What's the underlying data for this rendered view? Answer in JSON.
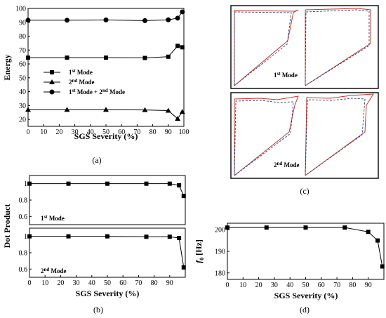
{
  "panels": {
    "a": {
      "caption": "(a)",
      "chart_data": {
        "type": "line",
        "xlabel": "SGS Severity (%)",
        "ylabel": "Energy",
        "xlim": [
          0,
          100
        ],
        "ylim": [
          15,
          100
        ],
        "x_ticks": [
          "0",
          "10",
          "20",
          "30",
          "40",
          "50",
          "60",
          "70",
          "80",
          "90",
          "100"
        ],
        "y_ticks": [
          "20",
          "30",
          "40",
          "50",
          "60",
          "70",
          "80",
          "90",
          "100"
        ],
        "legend_position": "center-left",
        "series": [
          {
            "name": "1st Mode",
            "legend_sup": "st",
            "legend_base": "1",
            "legend_rest": " Mode",
            "marker": "square",
            "x": [
              0,
              25,
              50,
              75,
              90,
              96,
              99
            ],
            "y": [
              64.5,
              64.5,
              64.5,
              64.3,
              65.2,
              73,
              72
            ]
          },
          {
            "name": "2nd Mode",
            "legend_sup": "nd",
            "legend_base": "2",
            "legend_rest": " Mode",
            "marker": "triangle",
            "x": [
              0,
              25,
              50,
              75,
              90,
              96,
              99
            ],
            "y": [
              27,
              27,
              27,
              26.8,
              26.4,
              20.5,
              25.5
            ]
          },
          {
            "name": "1st Mode + 2nd Mode",
            "marker": "circle",
            "x": [
              0,
              25,
              50,
              75,
              90,
              96,
              99
            ],
            "y": [
              91.5,
              91.5,
              91.7,
              91.2,
              91.8,
              93,
              97.5
            ]
          }
        ],
        "legend_circle_parts": [
          "1",
          "st",
          " Mode + 2",
          "nd",
          " Mode"
        ]
      }
    },
    "b": {
      "caption": "(b)",
      "chart_data": [
        {
          "type": "line",
          "annotation_base": "1",
          "annotation_sup": "st",
          "annotation_rest": " Mode",
          "xlim": [
            0,
            100
          ],
          "ylim": [
            0.5,
            1.1
          ],
          "y_ticks": [
            "0.6",
            "0.8",
            "1"
          ],
          "series": [
            {
              "x": [
                0,
                25,
                50,
                75,
                90,
                96,
                99
              ],
              "y": [
                1,
                1,
                1,
                1,
                1,
                0.98,
                0.85
              ]
            }
          ]
        },
        {
          "type": "line",
          "annotation_base": "2",
          "annotation_sup": "nd",
          "annotation_rest": " Mode",
          "xlim": [
            0,
            100
          ],
          "ylim": [
            0.5,
            1.1
          ],
          "y_ticks": [
            "0.6",
            "0.8",
            "1"
          ],
          "x_ticks": [
            "0",
            "10",
            "20",
            "30",
            "40",
            "50",
            "60",
            "70",
            "80",
            "90"
          ],
          "xlabel": "SGS Severity (%)",
          "series": [
            {
              "x": [
                0,
                25,
                50,
                75,
                90,
                96,
                99
              ],
              "y": [
                1,
                1,
                1,
                0.995,
                0.995,
                0.98,
                0.62
              ]
            }
          ]
        }
      ],
      "ylabel": "Dot Product"
    },
    "c": {
      "caption": "(c)",
      "labels": [
        {
          "base": "1",
          "sup": "st",
          "rest": " Mode"
        },
        {
          "base": "2",
          "sup": "nd",
          "rest": " Mode"
        }
      ],
      "colors": {
        "solid": "#c0392b",
        "dashed": "#2c3e7a"
      }
    },
    "d": {
      "caption": "(d)",
      "chart_data": {
        "type": "line",
        "xlabel": "SGS Severity (%)",
        "ylabel_base": "f",
        "ylabel_sub": "0",
        "ylabel_unit": " [Hz]",
        "xlim": [
          0,
          100
        ],
        "ylim": [
          177,
          203
        ],
        "x_ticks": [
          "0",
          "10",
          "20",
          "30",
          "40",
          "50",
          "60",
          "70",
          "80",
          "90"
        ],
        "y_ticks": [
          "180",
          "190",
          "200"
        ],
        "series": [
          {
            "x": [
              0,
              25,
              50,
              75,
              90,
              96,
              99
            ],
            "y": [
              201,
              201,
              201,
              201,
              199,
              195,
              183
            ]
          }
        ]
      }
    }
  }
}
